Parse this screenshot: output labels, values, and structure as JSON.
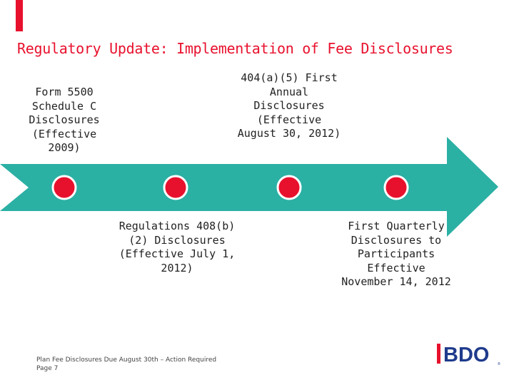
{
  "title": "Regulatory Update: Implementation of Fee Disclosures",
  "milestones": [
    {
      "text": "Form 5500 Schedule C Disclosures (Effective 2009)"
    },
    {
      "text": "404(a)(5) First Annual Disclosures (Effective August 30, 2012)"
    },
    {
      "text": "Regulations 408(b)(2) Disclosures (Effective July 1, 2012)"
    },
    {
      "text": "First Quarterly Disclosures to Participants Effective November 14, 2012"
    }
  ],
  "footer": {
    "line1": "Plan Fee Disclosures Due August 30th – Action Required",
    "line2": "Page 7"
  },
  "logo": {
    "text": "BDO"
  },
  "colors": {
    "accent": "#e8112d",
    "arrow": "#2bb0a4",
    "dot": "#e8112d"
  }
}
